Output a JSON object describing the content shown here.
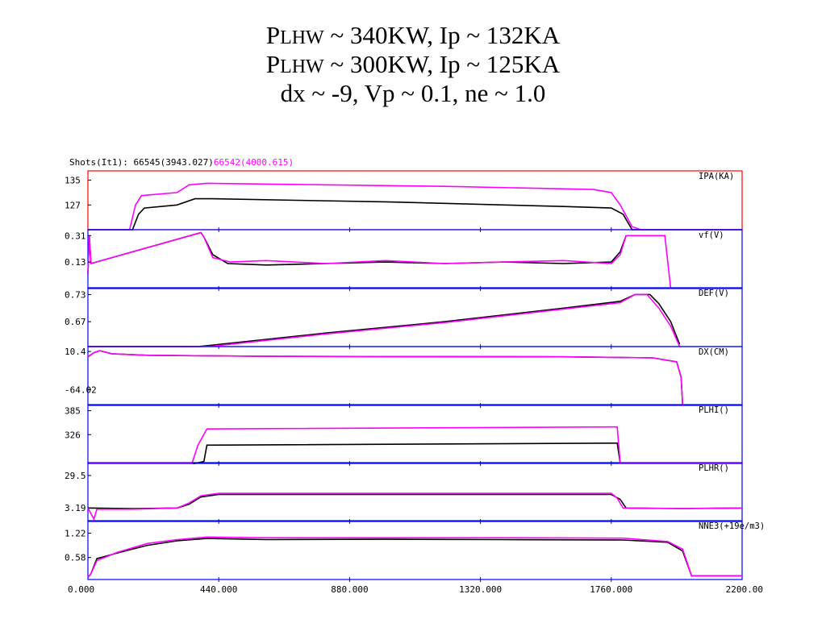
{
  "slide": {
    "title_lines": [
      {
        "p": "P",
        "sub": "LHW",
        "rest": " ~ 340KW, Ip ~ 132KA"
      },
      {
        "p": "P",
        "sub": "LHW",
        "rest": " ~ 300KW, Ip ~ 125KA"
      },
      {
        "p": "",
        "sub": "",
        "rest": "dx ~ -9, Vp ~ 0.1, ne ~ 1.0"
      }
    ]
  },
  "chart_data": {
    "type": "line",
    "header": {
      "prefix": "Shots(It1): ",
      "shot_black": "66545(3943.027)",
      "shot_magenta": "66542(4000.615)"
    },
    "x_ticks": [
      "0.000",
      "440.000",
      "880.000",
      "1320.000",
      "1760.000",
      "2200.00"
    ],
    "xlim": [
      0,
      2200
    ],
    "colors": {
      "black": "#000000",
      "magenta": "#ff00ff",
      "axis": "#0000ff",
      "highlight": "#ff0000"
    },
    "panels": [
      {
        "label": "IPA(KA)",
        "ticks": [
          "135",
          "127"
        ],
        "tick_values": [
          135,
          127
        ],
        "ylim": [
          119,
          138
        ],
        "highlight": true,
        "black": [
          [
            0,
            119
          ],
          [
            150,
            119
          ],
          [
            170,
            124
          ],
          [
            190,
            126
          ],
          [
            300,
            127
          ],
          [
            360,
            129
          ],
          [
            420,
            129
          ],
          [
            700,
            128.5
          ],
          [
            1000,
            128
          ],
          [
            1400,
            127
          ],
          [
            1600,
            126.5
          ],
          [
            1760,
            126
          ],
          [
            1800,
            124
          ],
          [
            1830,
            119
          ],
          [
            2200,
            119
          ]
        ],
        "magenta": [
          [
            0,
            119
          ],
          [
            140,
            119
          ],
          [
            160,
            127
          ],
          [
            180,
            130
          ],
          [
            300,
            131
          ],
          [
            340,
            133.5
          ],
          [
            400,
            134
          ],
          [
            800,
            133.5
          ],
          [
            1200,
            133
          ],
          [
            1700,
            132
          ],
          [
            1760,
            131
          ],
          [
            1790,
            127
          ],
          [
            1830,
            120
          ],
          [
            1860,
            119
          ],
          [
            2200,
            119
          ]
        ]
      },
      {
        "label": "vf(V)",
        "ticks": [
          "0.31",
          "0.13"
        ],
        "tick_values": [
          0.31,
          0.13
        ],
        "ylim": [
          -0.05,
          0.35
        ],
        "black": [
          [
            0,
            0.05
          ],
          [
            5,
            0.31
          ],
          [
            10,
            0.12
          ],
          [
            380,
            0.33
          ],
          [
            390,
            0.3
          ],
          [
            420,
            0.18
          ],
          [
            470,
            0.12
          ],
          [
            600,
            0.11
          ],
          [
            800,
            0.12
          ],
          [
            1000,
            0.13
          ],
          [
            1200,
            0.12
          ],
          [
            1400,
            0.13
          ],
          [
            1600,
            0.12
          ],
          [
            1760,
            0.13
          ],
          [
            1790,
            0.2
          ],
          [
            1810,
            0.31
          ]
        ],
        "magenta": [
          [
            0,
            0.05
          ],
          [
            5,
            0.31
          ],
          [
            10,
            0.12
          ],
          [
            380,
            0.33
          ],
          [
            390,
            0.3
          ],
          [
            420,
            0.16
          ],
          [
            480,
            0.13
          ],
          [
            600,
            0.14
          ],
          [
            800,
            0.12
          ],
          [
            1000,
            0.14
          ],
          [
            1200,
            0.12
          ],
          [
            1400,
            0.13
          ],
          [
            1600,
            0.14
          ],
          [
            1760,
            0.12
          ],
          [
            1790,
            0.18
          ],
          [
            1810,
            0.31
          ],
          [
            1940,
            0.31
          ],
          [
            1960,
            -0.05
          ]
        ]
      },
      {
        "label": "DEF(V)",
        "ticks": [
          "0.73",
          "0.67"
        ],
        "tick_values": [
          0.73,
          0.67
        ],
        "ylim": [
          0.615,
          0.745
        ],
        "black": [
          [
            0,
            0.615
          ],
          [
            370,
            0.615
          ],
          [
            400,
            0.617
          ],
          [
            800,
            0.645
          ],
          [
            1200,
            0.67
          ],
          [
            1600,
            0.7
          ],
          [
            1790,
            0.715
          ],
          [
            1840,
            0.73
          ],
          [
            1890,
            0.73
          ],
          [
            1920,
            0.71
          ],
          [
            1960,
            0.67
          ],
          [
            1990,
            0.62
          ]
        ],
        "magenta": [
          [
            0,
            0.615
          ],
          [
            380,
            0.615
          ],
          [
            420,
            0.616
          ],
          [
            800,
            0.643
          ],
          [
            1200,
            0.668
          ],
          [
            1600,
            0.698
          ],
          [
            1790,
            0.712
          ],
          [
            1840,
            0.73
          ],
          [
            1880,
            0.73
          ],
          [
            1920,
            0.7
          ],
          [
            1960,
            0.66
          ],
          [
            1990,
            0.615
          ]
        ]
      },
      {
        "label": "DX(CM)",
        "ticks": [
          "10.4",
          "-64.02"
        ],
        "tick_values": [
          10.4,
          -64.02
        ],
        "ylim": [
          -95,
          20
        ],
        "black": [
          [
            0,
            0
          ],
          [
            20,
            8
          ],
          [
            40,
            12
          ],
          [
            80,
            6
          ],
          [
            200,
            3
          ],
          [
            600,
            1
          ],
          [
            1600,
            0
          ],
          [
            1900,
            -2
          ],
          [
            1980,
            -10
          ],
          [
            1995,
            -40
          ],
          [
            2000,
            -95
          ]
        ],
        "magenta": [
          [
            0,
            0
          ],
          [
            20,
            8
          ],
          [
            40,
            12
          ],
          [
            80,
            6
          ],
          [
            200,
            3
          ],
          [
            600,
            1
          ],
          [
            1600,
            0
          ],
          [
            1900,
            -2
          ],
          [
            1980,
            -10
          ],
          [
            1995,
            -40
          ],
          [
            2000,
            -95
          ]
        ]
      },
      {
        "label": "PLHI()",
        "ticks": [
          "385",
          "326"
        ],
        "tick_values": [
          385,
          326
        ],
        "ylim": [
          255,
          400
        ],
        "black": [
          [
            0,
            255
          ],
          [
            360,
            255
          ],
          [
            390,
            260
          ],
          [
            400,
            300
          ],
          [
            1760,
            305
          ],
          [
            1780,
            305
          ],
          [
            1790,
            255
          ],
          [
            2200,
            255
          ]
        ],
        "magenta": [
          [
            0,
            255
          ],
          [
            350,
            255
          ],
          [
            370,
            300
          ],
          [
            400,
            340
          ],
          [
            1760,
            345
          ],
          [
            1780,
            345
          ],
          [
            1790,
            255
          ],
          [
            2200,
            255
          ]
        ]
      },
      {
        "label": "PLHR()",
        "ticks": [
          "29.5",
          "3.19"
        ],
        "tick_values": [
          29.5,
          3.19
        ],
        "ylim": [
          -8,
          40
        ],
        "black": [
          [
            0,
            3
          ],
          [
            150,
            2.5
          ],
          [
            300,
            3
          ],
          [
            340,
            6
          ],
          [
            380,
            12
          ],
          [
            440,
            14
          ],
          [
            1760,
            14
          ],
          [
            1790,
            10
          ],
          [
            1810,
            3
          ],
          [
            2000,
            2.5
          ],
          [
            2200,
            3
          ]
        ],
        "magenta": [
          [
            0,
            3
          ],
          [
            20,
            -6
          ],
          [
            30,
            2
          ],
          [
            150,
            2
          ],
          [
            300,
            3
          ],
          [
            340,
            7
          ],
          [
            380,
            13
          ],
          [
            440,
            15
          ],
          [
            1760,
            15
          ],
          [
            1780,
            11
          ],
          [
            1800,
            3
          ],
          [
            2000,
            2.5
          ],
          [
            2200,
            3
          ]
        ]
      },
      {
        "label": "NNE3(+19e/m3)",
        "ticks": [
          "1.22",
          "0.58"
        ],
        "tick_values": [
          1.22,
          0.58
        ],
        "ylim": [
          0,
          1.55
        ],
        "black": [
          [
            0,
            0.05
          ],
          [
            10,
            0.15
          ],
          [
            30,
            0.55
          ],
          [
            100,
            0.7
          ],
          [
            200,
            0.9
          ],
          [
            300,
            1.02
          ],
          [
            400,
            1.08
          ],
          [
            600,
            1.05
          ],
          [
            1000,
            1.06
          ],
          [
            1400,
            1.05
          ],
          [
            1800,
            1.04
          ],
          [
            1950,
            0.98
          ],
          [
            2000,
            0.75
          ],
          [
            2030,
            0.1
          ],
          [
            2200,
            0.1
          ]
        ],
        "magenta": [
          [
            0,
            0.05
          ],
          [
            10,
            0.15
          ],
          [
            30,
            0.5
          ],
          [
            100,
            0.72
          ],
          [
            200,
            0.95
          ],
          [
            300,
            1.05
          ],
          [
            400,
            1.12
          ],
          [
            600,
            1.1
          ],
          [
            1000,
            1.1
          ],
          [
            1400,
            1.1
          ],
          [
            1800,
            1.09
          ],
          [
            1950,
            1.0
          ],
          [
            2000,
            0.8
          ],
          [
            2030,
            0.1
          ],
          [
            2200,
            0.1
          ]
        ]
      }
    ]
  }
}
